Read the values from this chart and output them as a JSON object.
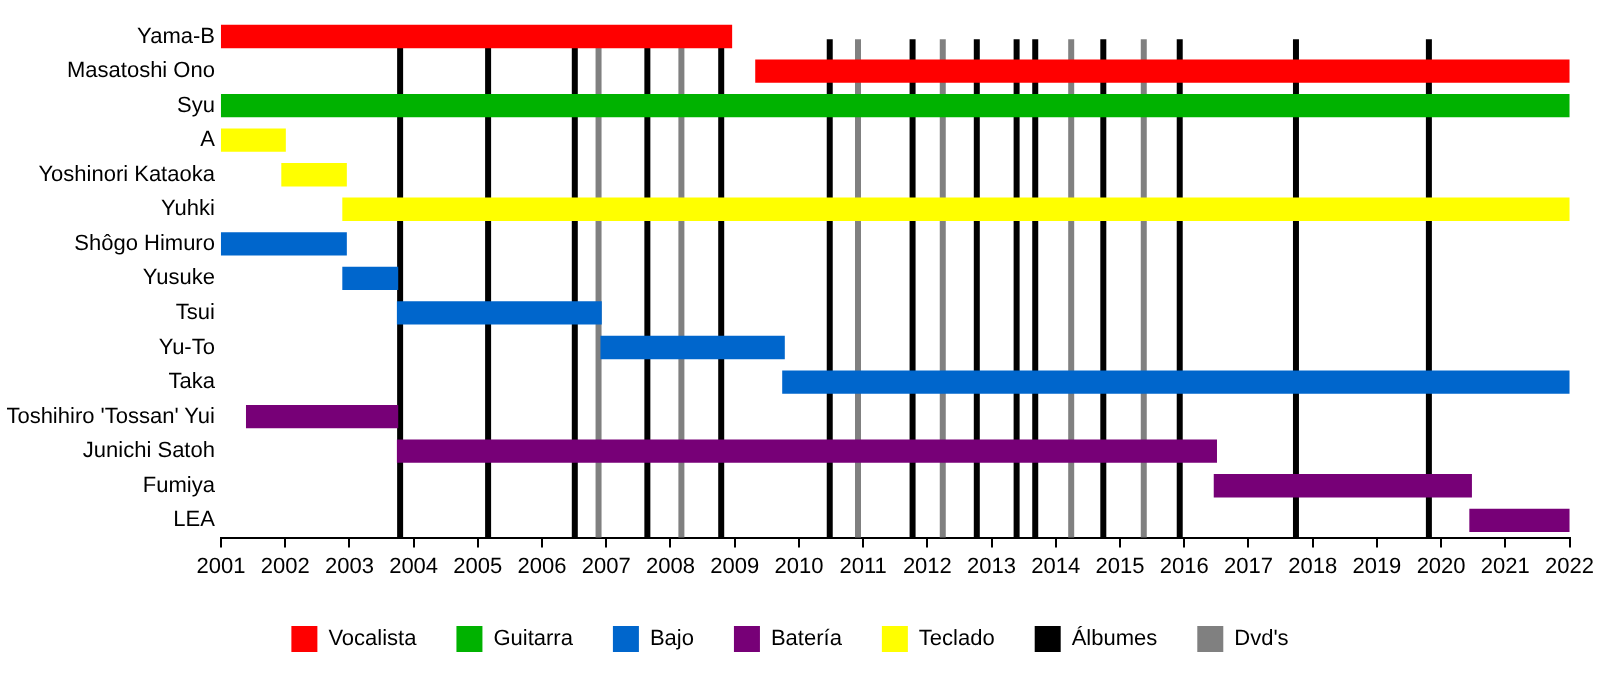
{
  "chart_data": {
    "type": "bar",
    "orientation": "horizontal",
    "categories": [
      "Yama-B",
      "Masatoshi Ono",
      "Syu",
      "A",
      "Yoshinori Kataoka",
      "Yuhki",
      "Shôgo Himuro",
      "Yusuke",
      "Tsui",
      "Yu-To",
      "Taka",
      "Toshihiro 'Tossan' Yui",
      "Junichi Satoh",
      "Fumiya",
      "LEA"
    ],
    "series": [
      {
        "name": "Vocalista",
        "color": "#ff0000",
        "base": [
          2001,
          2009.33,
          null,
          null,
          null,
          null,
          null,
          null,
          null,
          null,
          null,
          null,
          null,
          null,
          null
        ],
        "values": [
          7.95,
          12.67,
          null,
          null,
          null,
          null,
          null,
          null,
          null,
          null,
          null,
          null,
          null,
          null,
          null
        ]
      },
      {
        "name": "Guitarra",
        "color": "#00b200",
        "base": [
          null,
          null,
          2001,
          null,
          null,
          null,
          null,
          null,
          null,
          null,
          null,
          null,
          null,
          null,
          null
        ],
        "values": [
          null,
          null,
          21,
          null,
          null,
          null,
          null,
          null,
          null,
          null,
          null,
          null,
          null,
          null,
          null
        ]
      },
      {
        "name": "Bajo",
        "color": "#0066cc",
        "base": [
          null,
          null,
          null,
          null,
          null,
          null,
          2001,
          2002.9,
          2003.75,
          2006.92,
          2009.75,
          null,
          null,
          null,
          null
        ],
        "values": [
          null,
          null,
          null,
          null,
          null,
          null,
          1.95,
          0.85,
          3.17,
          2.85,
          12.25,
          null,
          null,
          null,
          null
        ]
      },
      {
        "name": "Batería",
        "color": "#770077",
        "base": [
          null,
          null,
          null,
          null,
          null,
          null,
          null,
          null,
          null,
          null,
          null,
          2001.4,
          2003.75,
          2016.47,
          2020.45
        ],
        "values": [
          null,
          null,
          null,
          null,
          null,
          null,
          null,
          null,
          null,
          null,
          null,
          2.35,
          12.75,
          4.0,
          1.55
        ]
      },
      {
        "name": "Teclado",
        "color": "#ffff00",
        "base": [
          null,
          null,
          null,
          2001,
          2001.95,
          2002.9,
          null,
          null,
          null,
          null,
          null,
          null,
          null,
          null,
          null
        ],
        "values": [
          null,
          null,
          null,
          1,
          1,
          19.1,
          null,
          null,
          null,
          null,
          null,
          null,
          null,
          null,
          null
        ]
      }
    ],
    "xlim": [
      2001,
      2022
    ],
    "xticks": [
      2001,
      2002,
      2003,
      2004,
      2005,
      2006,
      2007,
      2008,
      2009,
      2010,
      2011,
      2012,
      2013,
      2014,
      2015,
      2016,
      2017,
      2018,
      2019,
      2020,
      2021,
      2022
    ],
    "ref_lines": [
      {
        "axis": "x",
        "value": 2003.79,
        "label": "Álbumes",
        "color": "#000000"
      },
      {
        "axis": "x",
        "value": 2005.16,
        "color": "#000000"
      },
      {
        "axis": "x",
        "value": 2006.51,
        "color": "#000000"
      },
      {
        "axis": "x",
        "value": 2007.64,
        "color": "#000000"
      },
      {
        "axis": "x",
        "value": 2008.79,
        "color": "#000000"
      },
      {
        "axis": "x",
        "value": 2010.48,
        "color": "#000000"
      },
      {
        "axis": "x",
        "value": 2011.77,
        "color": "#000000"
      },
      {
        "axis": "x",
        "value": 2012.77,
        "color": "#000000"
      },
      {
        "axis": "x",
        "value": 2013.39,
        "color": "#000000"
      },
      {
        "axis": "x",
        "value": 2013.68,
        "color": "#000000"
      },
      {
        "axis": "x",
        "value": 2014.74,
        "color": "#000000"
      },
      {
        "axis": "x",
        "value": 2015.93,
        "color": "#000000"
      },
      {
        "axis": "x",
        "value": 2017.74,
        "color": "#000000"
      },
      {
        "axis": "x",
        "value": 2019.81,
        "color": "#000000"
      },
      {
        "axis": "x",
        "value": 2006.88,
        "label": "Dvd's",
        "color": "#808080"
      },
      {
        "axis": "x",
        "value": 2008.17,
        "color": "#808080"
      },
      {
        "axis": "x",
        "value": 2010.92,
        "color": "#808080"
      },
      {
        "axis": "x",
        "value": 2012.24,
        "color": "#808080"
      },
      {
        "axis": "x",
        "value": 2014.24,
        "color": "#808080"
      },
      {
        "axis": "x",
        "value": 2015.37,
        "color": "#808080"
      }
    ],
    "legend": "bottom"
  }
}
